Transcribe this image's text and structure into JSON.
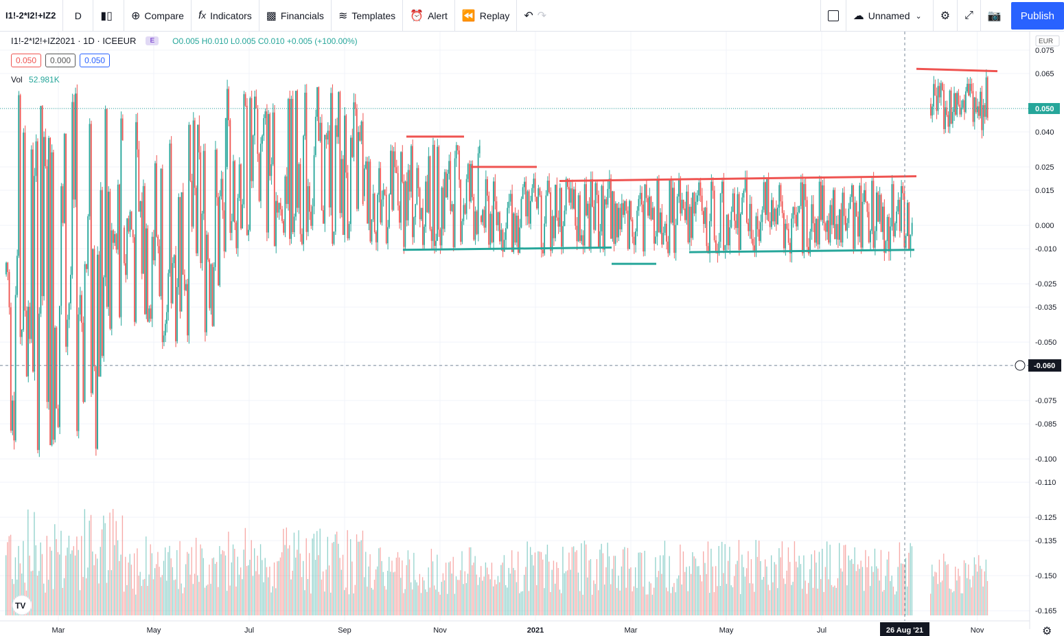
{
  "toolbar": {
    "symbol": "I1!-2*I2!+IZ2",
    "interval": "D",
    "compare": "Compare",
    "indicators": "Indicators",
    "financials": "Financials",
    "templates": "Templates",
    "alert": "Alert",
    "replay": "Replay",
    "layout_name": "Unnamed",
    "publish": "Publish"
  },
  "legend": {
    "title": "I1!-2*I2!+IZ2021 · 1D · ICEEUR",
    "badge": "E",
    "ohlc": "O0.005 H0.010 L0.005 C0.010 +0.005 (+100.00%)",
    "pill_sell": "0.050",
    "pill_spread": "0.000",
    "pill_buy": "0.050",
    "vol_label": "Vol",
    "vol_value": "52.981K"
  },
  "colors": {
    "up": "#26a69a",
    "down": "#ef5350",
    "grid": "#f0f3fa",
    "axis_text": "#131722"
  },
  "chart_data": {
    "type": "candlestick",
    "currency": "EUR",
    "y_ticks": [
      "0.075",
      "0.065",
      "0.050",
      "0.040",
      "0.025",
      "0.015",
      "0.000",
      "-0.010",
      "-0.025",
      "-0.035",
      "-0.050",
      "-0.060",
      "-0.075",
      "-0.085",
      "-0.100",
      "-0.110",
      "-0.125",
      "-0.135",
      "-0.150",
      "-0.165"
    ],
    "y_tick_values": [
      0.075,
      0.065,
      0.05,
      0.04,
      0.025,
      0.015,
      0,
      -0.01,
      -0.025,
      -0.035,
      -0.05,
      -0.06,
      -0.075,
      -0.085,
      -0.1,
      -0.11,
      -0.125,
      -0.135,
      -0.15,
      -0.165
    ],
    "ylim": [
      -0.167,
      0.08
    ],
    "x_ticks": [
      "Mar",
      "May",
      "Jul",
      "Sep",
      "Nov",
      "2021",
      "Mar",
      "May",
      "Jul",
      "Nov"
    ],
    "last_price_label": "0.050",
    "last_price": 0.05,
    "crosshair_price_label": "-0.060",
    "crosshair_price": -0.06,
    "crosshair_date_label": "26 Aug '21",
    "segments": [
      {
        "region": "early",
        "y_range": [
          -0.1,
          0.065
        ]
      },
      {
        "region": "mid",
        "y_range": [
          -0.01,
          0.04
        ]
      },
      {
        "region": "range",
        "y_range": [
          -0.012,
          0.02
        ]
      },
      {
        "region": "late",
        "y_range": [
          0.04,
          0.065
        ]
      }
    ],
    "drawn_levels": [
      {
        "color": "down",
        "from": "Oct 2020",
        "to": "Nov 2020",
        "y_start": 0.038,
        "y_end": 0.038
      },
      {
        "color": "down",
        "from": "Nov 2020",
        "to": "Dec 2020",
        "y_start": 0.025,
        "y_end": 0.025
      },
      {
        "color": "down",
        "from": "Jan 2021",
        "to": "Aug 2021",
        "y_start": 0.019,
        "y_end": 0.021
      },
      {
        "color": "down",
        "from": "Sep 2021",
        "to": "Oct 2021",
        "y_start": 0.067,
        "y_end": 0.066
      },
      {
        "color": "up",
        "from": "Oct 2020",
        "to": "Feb 2021",
        "y_start": -0.0105,
        "y_end": -0.0095
      },
      {
        "color": "up",
        "from": "Feb 2021",
        "to": "Mar 2021",
        "y_start": -0.0165,
        "y_end": -0.0165
      },
      {
        "color": "up",
        "from": "Apr 2021",
        "to": "Aug 2021",
        "y_start": -0.0115,
        "y_end": -0.0105
      }
    ]
  }
}
